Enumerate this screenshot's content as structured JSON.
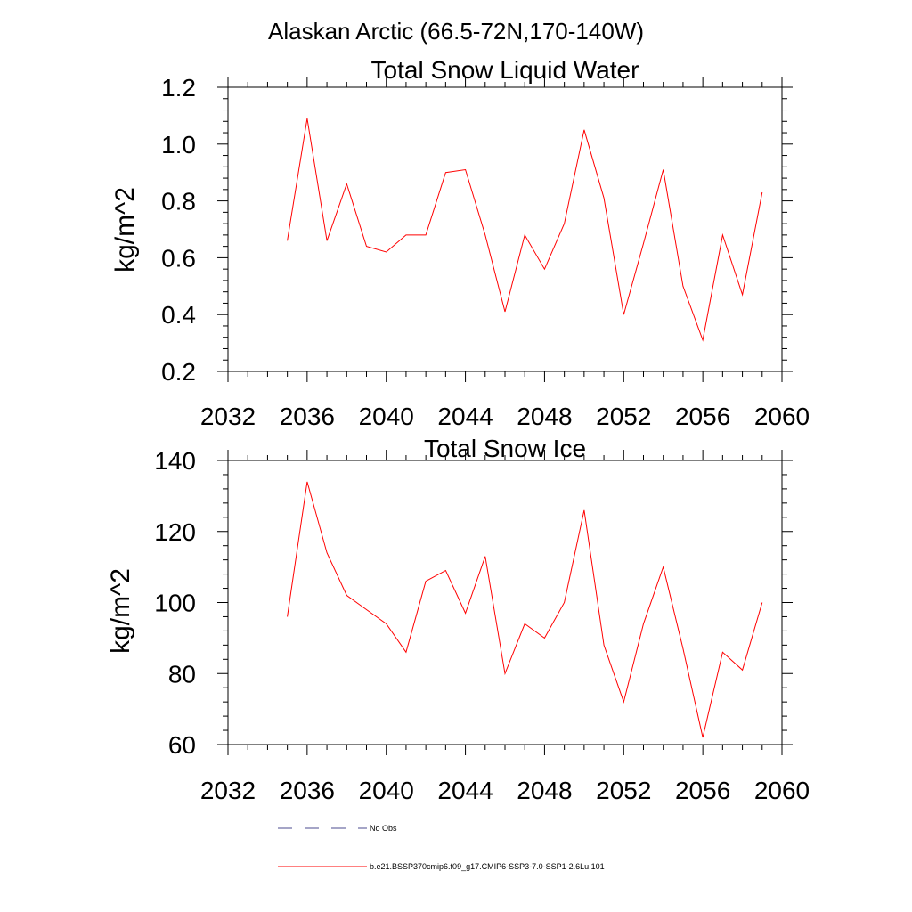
{
  "figure_title": "Alaskan Arctic (66.5-72N,170-140W)",
  "legend": [
    {
      "label": "No Obs",
      "style": "dashed",
      "color": "#4b4b8f"
    },
    {
      "label": "b.e21.BSSP370cmip6.f09_g17.CMIP6-SSP3-7.0-SSP1-2.6Lu.101",
      "style": "solid",
      "color": "#ff0000"
    }
  ],
  "chart_data": [
    {
      "type": "line",
      "title": "Total Snow Liquid Water",
      "xlabel": "",
      "ylabel": "kg/m^2",
      "xlim": [
        2032,
        2060
      ],
      "ylim": [
        0.2,
        1.2
      ],
      "xticks": [
        2032,
        2036,
        2040,
        2044,
        2048,
        2052,
        2056,
        2060
      ],
      "yticks": [
        0.2,
        0.4,
        0.6,
        0.8,
        1.0,
        1.2
      ],
      "ytick_labels": [
        "0.2",
        "0.4",
        "0.6",
        "0.8",
        "1.0",
        "1.2"
      ],
      "grid": false,
      "series": [
        {
          "name": "b.e21.BSSP370cmip6.f09_g17.CMIP6-SSP3-7.0-SSP1-2.6Lu.101",
          "color": "#ff0000",
          "x": [
            2035,
            2036,
            2037,
            2038,
            2039,
            2040,
            2041,
            2042,
            2043,
            2044,
            2045,
            2046,
            2047,
            2048,
            2049,
            2050,
            2051,
            2052,
            2053,
            2054,
            2055,
            2056,
            2057,
            2058,
            2059
          ],
          "y": [
            0.66,
            1.09,
            0.66,
            0.86,
            0.64,
            0.62,
            0.68,
            0.68,
            0.9,
            0.91,
            0.68,
            0.41,
            0.68,
            0.56,
            0.72,
            1.05,
            0.81,
            0.4,
            0.65,
            0.91,
            0.5,
            0.31,
            0.68,
            0.47,
            0.83
          ]
        }
      ]
    },
    {
      "type": "line",
      "title": "Total Snow Ice",
      "xlabel": "",
      "ylabel": "kg/m^2",
      "xlim": [
        2032,
        2060
      ],
      "ylim": [
        60,
        140
      ],
      "xticks": [
        2032,
        2036,
        2040,
        2044,
        2048,
        2052,
        2056,
        2060
      ],
      "yticks": [
        60,
        80,
        100,
        120,
        140
      ],
      "ytick_labels": [
        "60",
        "80",
        "100",
        "120",
        "140"
      ],
      "grid": false,
      "series": [
        {
          "name": "b.e21.BSSP370cmip6.f09_g17.CMIP6-SSP3-7.0-SSP1-2.6Lu.101",
          "color": "#ff0000",
          "x": [
            2035,
            2036,
            2037,
            2038,
            2039,
            2040,
            2041,
            2042,
            2043,
            2044,
            2045,
            2046,
            2047,
            2048,
            2049,
            2050,
            2051,
            2052,
            2053,
            2054,
            2055,
            2056,
            2057,
            2058,
            2059
          ],
          "y": [
            96,
            134,
            114,
            102,
            98,
            94,
            86,
            106,
            109,
            97,
            113,
            80,
            94,
            90,
            100,
            126,
            88,
            72,
            94,
            110,
            87,
            62,
            86,
            81,
            100
          ]
        }
      ]
    }
  ]
}
